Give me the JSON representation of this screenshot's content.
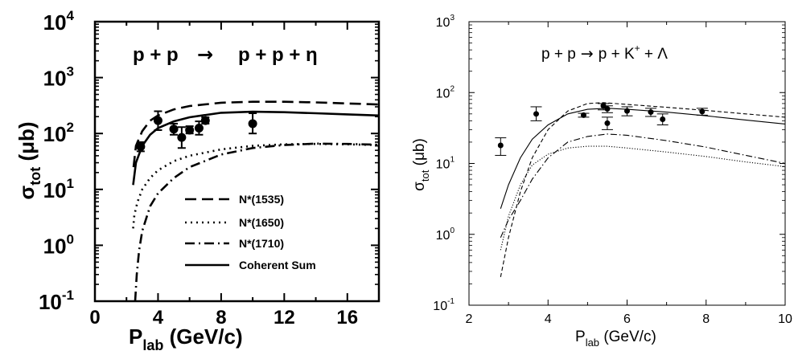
{
  "chart_data": [
    {
      "type": "line",
      "panel": "left",
      "reaction": {
        "lhs": "p + p",
        "arrow": "→",
        "rhs": "p + p + η"
      },
      "xlabel": {
        "main": "P",
        "sub": "lab",
        "rest": " (GeV/c)"
      },
      "ylabel": {
        "main": "σ",
        "sub": "tot",
        "rest": " (μb)"
      },
      "xlim": [
        0,
        18
      ],
      "ylim": [
        0.1,
        10000
      ],
      "yscale": "log",
      "xticks": [
        0,
        4,
        8,
        12,
        16
      ],
      "xtick_labels": [
        "0",
        "4",
        "8",
        "12",
        "16"
      ],
      "yticks": [
        0.1,
        1,
        10,
        100,
        1000,
        10000
      ],
      "ytick_labels": [
        {
          "base": "10",
          "exp": "-1"
        },
        {
          "base": "10",
          "exp": "0"
        },
        {
          "base": "10",
          "exp": "1"
        },
        {
          "base": "10",
          "exp": "2"
        },
        {
          "base": "10",
          "exp": "3"
        },
        {
          "base": "10",
          "exp": "4"
        }
      ],
      "legend_position": "bottom-right",
      "series": [
        {
          "name": "N*(1535)",
          "dash": "dashed",
          "points": [
            [
              2.45,
              25
            ],
            [
              2.6,
              60
            ],
            [
              3,
              110
            ],
            [
              3.5,
              170
            ],
            [
              4,
              210
            ],
            [
              5,
              270
            ],
            [
              6,
              310
            ],
            [
              8,
              355
            ],
            [
              10,
              370
            ],
            [
              12,
              370
            ],
            [
              14,
              360
            ],
            [
              16,
              345
            ],
            [
              18,
              330
            ]
          ]
        },
        {
          "name": "N*(1650)",
          "dash": "dotted",
          "points": [
            [
              2.42,
              2
            ],
            [
              2.5,
              3.5
            ],
            [
              2.7,
              6
            ],
            [
              3,
              10
            ],
            [
              3.5,
              16
            ],
            [
              4,
              22
            ],
            [
              5,
              32
            ],
            [
              6,
              40
            ],
            [
              8,
              52
            ],
            [
              10,
              60
            ],
            [
              12,
              64
            ],
            [
              14,
              65
            ],
            [
              16,
              64
            ],
            [
              18,
              62
            ]
          ]
        },
        {
          "name": "N*(1710)",
          "dash": "dashdot",
          "points": [
            [
              2.55,
              0.1
            ],
            [
              2.65,
              0.3
            ],
            [
              2.8,
              0.8
            ],
            [
              3,
              1.8
            ],
            [
              3.5,
              5
            ],
            [
              4,
              8.5
            ],
            [
              5,
              16
            ],
            [
              6,
              25
            ],
            [
              8,
              42
            ],
            [
              10,
              55
            ],
            [
              12,
              62
            ],
            [
              14,
              66
            ],
            [
              16,
              65
            ],
            [
              18,
              63
            ]
          ]
        },
        {
          "name": "Coherent Sum",
          "dash": "solid",
          "points": [
            [
              2.42,
              12
            ],
            [
              2.6,
              30
            ],
            [
              3,
              60
            ],
            [
              3.5,
              95
            ],
            [
              4,
              125
            ],
            [
              5,
              165
            ],
            [
              6,
              195
            ],
            [
              8,
              235
            ],
            [
              10,
              245
            ],
            [
              12,
              240
            ],
            [
              14,
              230
            ],
            [
              16,
              220
            ],
            [
              18,
              210
            ]
          ]
        }
      ],
      "data_points": [
        {
          "x": 2.9,
          "y": 58,
          "ylo": 48,
          "yhi": 70
        },
        {
          "x": 4.0,
          "y": 170,
          "ylo": 115,
          "yhi": 250
        },
        {
          "x": 5.0,
          "y": 120,
          "ylo": 95,
          "yhi": 150
        },
        {
          "x": 5.5,
          "y": 85,
          "ylo": 55,
          "yhi": 130
        },
        {
          "x": 6.0,
          "y": 115,
          "ylo": 100,
          "yhi": 135
        },
        {
          "x": 6.6,
          "y": 125,
          "ylo": 95,
          "yhi": 165
        },
        {
          "x": 7.0,
          "y": 170,
          "ylo": 150,
          "yhi": 195
        },
        {
          "x": 10.0,
          "y": 150,
          "ylo": 100,
          "yhi": 230
        }
      ]
    },
    {
      "type": "line",
      "panel": "right",
      "reaction": {
        "lhs": "p + p",
        "arrow": "→",
        "rhs1": "p + K",
        "sup": "+",
        "rhs2": " + Λ"
      },
      "xlabel": {
        "main": "P",
        "sub": "lab",
        "rest": " (GeV/c)"
      },
      "ylabel": {
        "main": "σ",
        "sub": "tot",
        "rest": " (μb)"
      },
      "xlim": [
        2,
        10
      ],
      "ylim": [
        0.1,
        1000
      ],
      "yscale": "log",
      "xticks": [
        2,
        4,
        6,
        8,
        10
      ],
      "xtick_labels": [
        "2",
        "4",
        "6",
        "8",
        "10"
      ],
      "yticks": [
        0.1,
        1,
        10,
        100,
        1000
      ],
      "ytick_labels": [
        {
          "base": "10",
          "exp": "-1"
        },
        {
          "base": "10",
          "exp": "0"
        },
        {
          "base": "10",
          "exp": "1"
        },
        {
          "base": "10",
          "exp": "2"
        },
        {
          "base": "10",
          "exp": "3"
        }
      ],
      "series": [
        {
          "dash": "solid",
          "points": [
            [
              2.8,
              2.3
            ],
            [
              3,
              5
            ],
            [
              3.3,
              12
            ],
            [
              3.6,
              22
            ],
            [
              4,
              35
            ],
            [
              4.5,
              50
            ],
            [
              5,
              58
            ],
            [
              5.5,
              60
            ],
            [
              6,
              58
            ],
            [
              7,
              53
            ],
            [
              8,
              47
            ],
            [
              9,
              41
            ],
            [
              10,
              36
            ]
          ]
        },
        {
          "dash": "dashed",
          "points": [
            [
              2.8,
              0.25
            ],
            [
              3,
              0.9
            ],
            [
              3.3,
              4
            ],
            [
              3.6,
              12
            ],
            [
              4,
              30
            ],
            [
              4.5,
              55
            ],
            [
              5,
              70
            ],
            [
              5.4,
              72
            ],
            [
              6,
              68
            ],
            [
              7,
              62
            ],
            [
              8,
              56
            ],
            [
              9,
              50
            ],
            [
              10,
              45
            ]
          ]
        },
        {
          "dash": "dotted",
          "points": [
            [
              2.8,
              0.6
            ],
            [
              3,
              1.8
            ],
            [
              3.3,
              5
            ],
            [
              3.6,
              9.5
            ],
            [
              4,
              13.5
            ],
            [
              4.5,
              16.5
            ],
            [
              5,
              17.5
            ],
            [
              5.5,
              17.5
            ],
            [
              6,
              16.5
            ],
            [
              7,
              14.5
            ],
            [
              8,
              12.5
            ],
            [
              9,
              10.5
            ],
            [
              10,
              9
            ]
          ]
        },
        {
          "dash": "dashdot",
          "points": [
            [
              2.8,
              0.9
            ],
            [
              3,
              1.6
            ],
            [
              3.3,
              3
            ],
            [
              3.6,
              6
            ],
            [
              4,
              12
            ],
            [
              4.5,
              20
            ],
            [
              5,
              24
            ],
            [
              5.5,
              26
            ],
            [
              6,
              25
            ],
            [
              7,
              21
            ],
            [
              8,
              17
            ],
            [
              9,
              13
            ],
            [
              10,
              10
            ]
          ]
        }
      ],
      "data_points": [
        {
          "x": 2.8,
          "y": 18,
          "ylo": 13,
          "yhi": 23
        },
        {
          "x": 3.7,
          "y": 50,
          "ylo": 40,
          "yhi": 63
        },
        {
          "x": 4.9,
          "y": 48,
          "ylo": 45,
          "yhi": 51
        },
        {
          "x": 5.4,
          "y": 65,
          "ylo": 57,
          "yhi": 70
        },
        {
          "x": 5.5,
          "y": 59,
          "ylo": 52,
          "yhi": 65
        },
        {
          "x": 5.5,
          "y": 37,
          "ylo": 30,
          "yhi": 45
        },
        {
          "x": 6.0,
          "y": 55,
          "ylo": 47,
          "yhi": 63
        },
        {
          "x": 6.6,
          "y": 53,
          "ylo": 46,
          "yhi": 60
        },
        {
          "x": 6.9,
          "y": 42,
          "ylo": 35,
          "yhi": 50
        },
        {
          "x": 7.9,
          "y": 54,
          "ylo": 48,
          "yhi": 60
        }
      ]
    }
  ]
}
